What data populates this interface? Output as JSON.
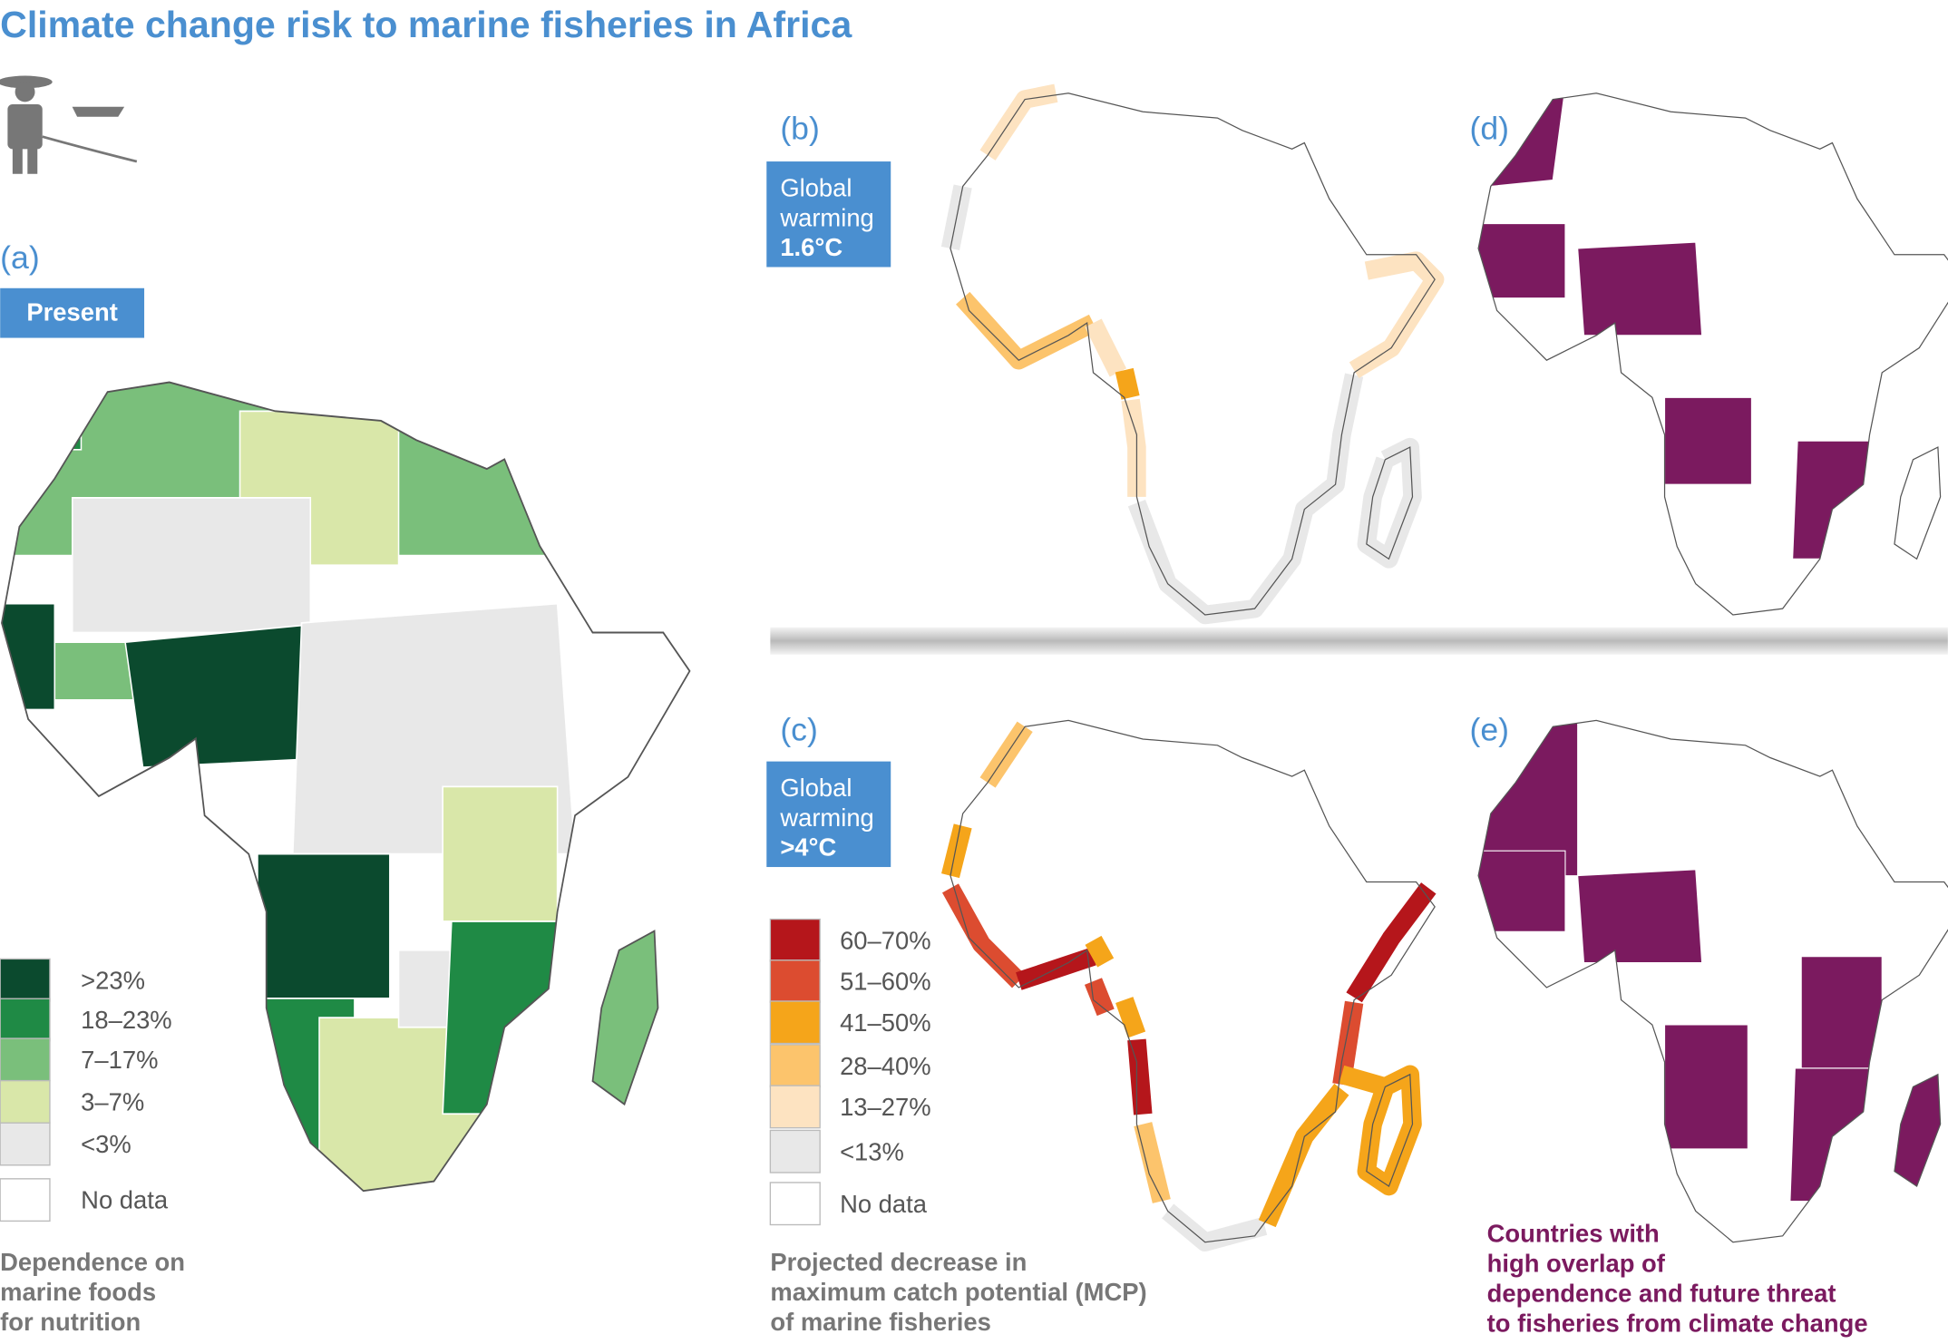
{
  "title": "Climate change risk to marine fisheries in Africa",
  "panels": {
    "a": {
      "label": "(a)",
      "badge": [
        "Present"
      ]
    },
    "b": {
      "label": "(b)",
      "badge": [
        "Global",
        "warming",
        "1.6°C"
      ]
    },
    "c": {
      "label": "(c)",
      "badge": [
        "Global",
        "warming",
        ">4°C"
      ]
    },
    "d": {
      "label": "(d)"
    },
    "e": {
      "label": "(e)"
    }
  },
  "legend_dependence": {
    "items": [
      {
        "label": ">23%",
        "color": "#0b4a2e"
      },
      {
        "label": "18–23%",
        "color": "#1f8a45"
      },
      {
        "label": "7–17%",
        "color": "#7abf7b"
      },
      {
        "label": "3–7%",
        "color": "#d9e7a9"
      },
      {
        "label": "<3%",
        "color": "#e8e8e8"
      },
      {
        "label": "No data",
        "color": "#ffffff"
      }
    ],
    "caption": [
      "Dependence on",
      "marine foods",
      "for nutrition"
    ]
  },
  "legend_mcp": {
    "items": [
      {
        "label": "60–70%",
        "color": "#b5161b"
      },
      {
        "label": "51–60%",
        "color": "#dc4c30"
      },
      {
        "label": "41–50%",
        "color": "#f5a51a"
      },
      {
        "label": "28–40%",
        "color": "#fcc46c"
      },
      {
        "label": "13–27%",
        "color": "#fde3c1"
      },
      {
        "label": "<13%",
        "color": "#e8e8e8"
      },
      {
        "label": "No data",
        "color": "#ffffff"
      }
    ],
    "caption": [
      "Projected decrease in",
      "maximum catch potential (MCP)",
      "of marine fisheries"
    ]
  },
  "overlap": {
    "color": "#7b1a5f",
    "caption": [
      "Countries with",
      "high overlap of",
      "dependence and future threat",
      "to fisheries from climate change"
    ]
  }
}
